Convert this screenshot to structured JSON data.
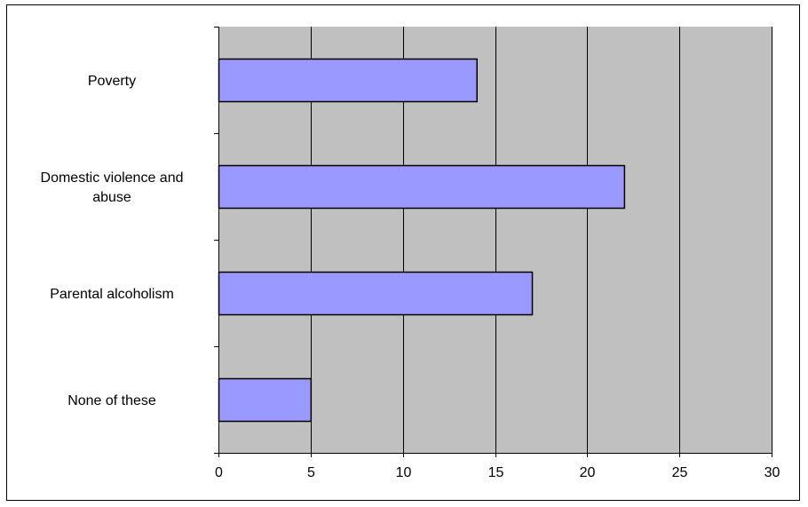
{
  "chart_data": {
    "type": "bar",
    "orientation": "horizontal",
    "categories": [
      [
        "Poverty"
      ],
      [
        "Domestic violence and",
        "abuse"
      ],
      [
        "Parental alcoholism"
      ],
      [
        "None of these"
      ]
    ],
    "values": [
      14,
      22,
      17,
      5
    ],
    "xlim": [
      0,
      30
    ],
    "x_ticks": [
      "0",
      "5",
      "10",
      "15",
      "20",
      "25",
      "30"
    ],
    "grid": true,
    "colors": {
      "bar_fill": "#9999ff",
      "plot_background": "#c0c0c0",
      "gridline": "#000000"
    }
  }
}
